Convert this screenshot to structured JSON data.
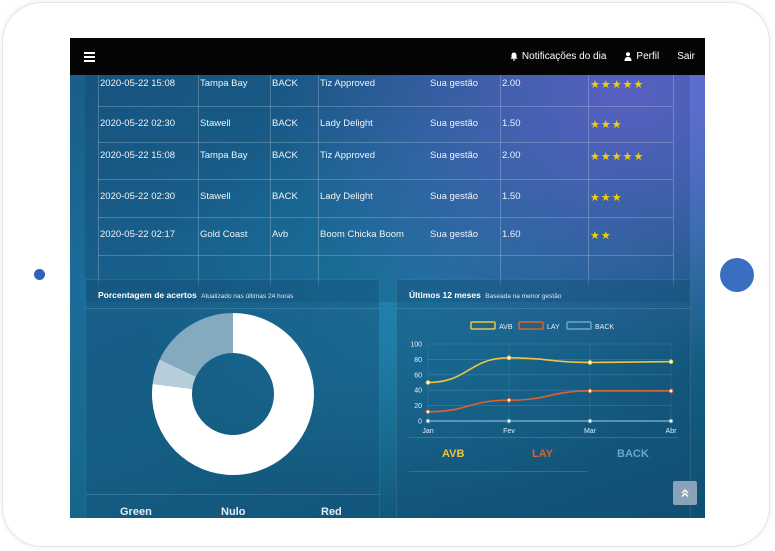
{
  "topbar": {
    "menu_icon": "hamburger-icon",
    "notifications_label": "Notificações do dia",
    "profile_label": "Perfil",
    "logout_label": "Sair"
  },
  "table": {
    "rows": [
      {
        "datetime": "2020-05-22 15:08",
        "place": "Tampa Bay",
        "type": "BACK",
        "horse": "Tiz Approved",
        "management": "Sua gestão",
        "odds": "2.00",
        "stars": "★★★★★"
      },
      {
        "datetime": "2020-05-22 02:30",
        "place": "Stawell",
        "type": "BACK",
        "horse": "Lady Delight",
        "management": "Sua gestão",
        "odds": "1.50",
        "stars": "★★★"
      },
      {
        "datetime": "2020-05-22 15:08",
        "place": "Tampa Bay",
        "type": "BACK",
        "horse": "Tiz Approved",
        "management": "Sua gestão",
        "odds": "2.00",
        "stars": "★★★★★"
      },
      {
        "datetime": "2020-05-22 02:30",
        "place": "Stawell",
        "type": "BACK",
        "horse": "Lady Delight",
        "management": "Sua gestão",
        "odds": "1.50",
        "stars": "★★★"
      },
      {
        "datetime": "2020-05-22 02:17",
        "place": "Gold Coast",
        "type": "Avb",
        "horse": "Boom Chicka Boom",
        "management": "Sua gestão",
        "odds": "1.60",
        "stars": "★★"
      }
    ]
  },
  "accuracy_panel": {
    "title": "Porcentagem de acertos",
    "subtitle": "Atualizado nas últimas 24 horas",
    "labels": [
      "Green",
      "Nulo",
      "Red"
    ]
  },
  "months_panel": {
    "title": "Últimos 12 meses",
    "subtitle": "Baseada na menor gestão",
    "summary_labels": [
      "AVB",
      "LAY",
      "BACK"
    ]
  },
  "colors": {
    "avb": "#f0c43c",
    "lay": "#e0622a",
    "back": "#6ba7c9",
    "star": "#f5d000"
  },
  "chart_data": [
    {
      "type": "pie",
      "title": "Porcentagem de acertos",
      "categories": [
        "Green",
        "Nulo",
        "Red"
      ],
      "values": [
        77,
        5,
        18
      ],
      "colors": [
        "#ffffff",
        "#b7cdd9",
        "#84aac0"
      ]
    },
    {
      "type": "line",
      "title": "Últimos 12 meses",
      "categories": [
        "Jan",
        "Fev",
        "Mar",
        "Abr"
      ],
      "ylim": [
        0,
        100
      ],
      "yticks": [
        0,
        20,
        40,
        60,
        80,
        100
      ],
      "series": [
        {
          "name": "AVB",
          "values": [
            50,
            82,
            76,
            77
          ],
          "color": "#f0c43c"
        },
        {
          "name": "LAY",
          "values": [
            12,
            27,
            39,
            39
          ],
          "color": "#e0622a"
        },
        {
          "name": "BACK",
          "values": [
            0,
            0,
            0,
            0
          ],
          "color": "#6ba7c9"
        }
      ],
      "legend": "top"
    }
  ],
  "scroll_up_icon": "chevron-double-up-icon"
}
